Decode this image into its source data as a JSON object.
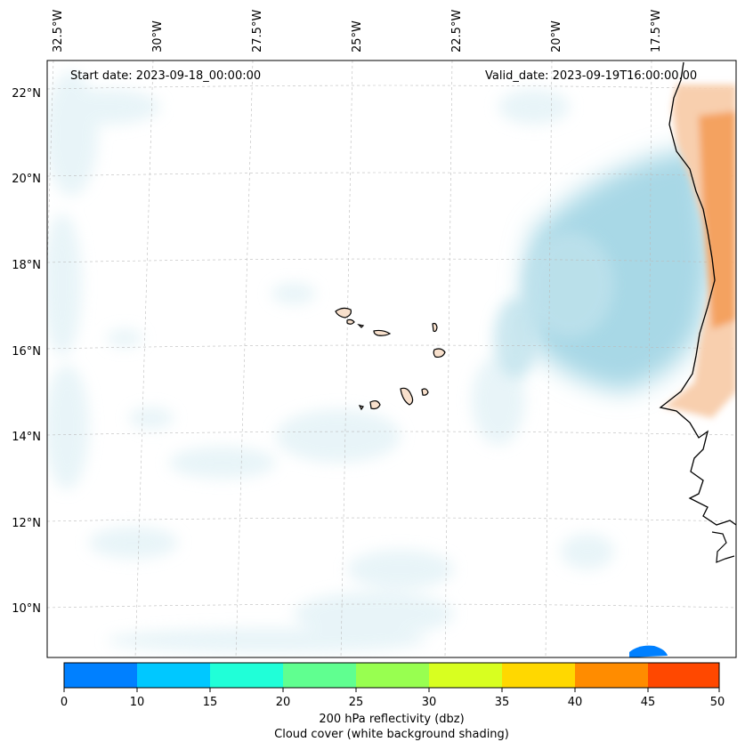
{
  "header": {
    "start_date": "Start date: 2023-09-18_00:00:00",
    "valid_date": "Valid_date: 2023-09-19T16:00:00.00"
  },
  "map": {
    "longitude_labels": [
      "32.5°W",
      "30°W",
      "27.5°W",
      "25°W",
      "22.5°W",
      "20°W",
      "17.5°W"
    ],
    "latitude_labels": [
      "22°N",
      "20°N",
      "18°N",
      "16°N",
      "14°N",
      "12°N",
      "10°N"
    ],
    "colors": {
      "cloud_cover": "#a8d8e6",
      "land_shading": "#f4a261",
      "coastline": "#000000",
      "gridline": "#bbbbbb"
    }
  },
  "colorbar": {
    "ticks": [
      "0",
      "10",
      "15",
      "20",
      "25",
      "30",
      "35",
      "40",
      "45",
      "50"
    ],
    "colors": [
      "#0080ff",
      "#00c8ff",
      "#20ffd8",
      "#60ff90",
      "#98ff50",
      "#d8ff20",
      "#ffd800",
      "#ff8c00",
      "#ff4800"
    ],
    "label_line1": "200 hPa reflectivity (dbz)",
    "label_line2": "Cloud cover (white background shading)"
  }
}
